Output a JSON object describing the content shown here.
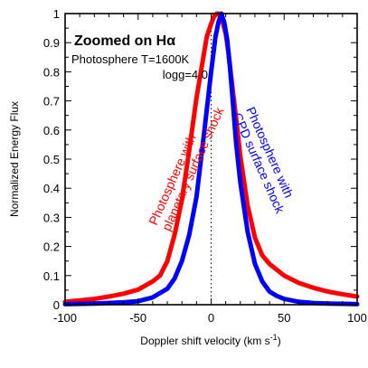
{
  "chart_data": {
    "type": "line",
    "title": "Zoomed on Hα",
    "xlabel_main": "Doppler shift velocity (km s",
    "xlabel_sup": "-1",
    "xlabel_end": ")",
    "ylabel": "Normalized Energy Flux",
    "xlim": [
      -100,
      100
    ],
    "ylim": [
      0,
      1
    ],
    "xticks": [
      -100,
      -50,
      0,
      50,
      100
    ],
    "yticks": [
      0,
      0.1,
      0.2,
      0.3,
      0.4,
      0.5,
      0.6,
      0.7,
      0.8,
      0.9,
      1
    ],
    "xtick_labels": [
      "-100",
      "-50",
      "0",
      "50",
      "100"
    ],
    "ytick_labels": [
      "0",
      "0.1",
      "0.2",
      "0.3",
      "0.4",
      "0.5",
      "0.6",
      "0.7",
      "0.8",
      "0.9",
      "1"
    ],
    "annotation_lines": [
      "Photosphere T=1600K",
      "logg=4.0"
    ],
    "series": [
      {
        "name": "Photosphere with planetary surface shock",
        "label_lines": [
          "Photosphere with",
          "planetary surface shock"
        ],
        "color": "#ff0000",
        "x": [
          -100,
          -90,
          -80,
          -70,
          -60,
          -50,
          -40,
          -35,
          -30,
          -25,
          -20,
          -15,
          -10,
          -7,
          -5,
          -3,
          0,
          2,
          4,
          5,
          7,
          8,
          10,
          12,
          15,
          18,
          20,
          25,
          30,
          35,
          40,
          50,
          60,
          70,
          80,
          90,
          100
        ],
        "y": [
          0.01,
          0.015,
          0.02,
          0.028,
          0.038,
          0.052,
          0.08,
          0.1,
          0.15,
          0.24,
          0.36,
          0.53,
          0.71,
          0.8,
          0.86,
          0.92,
          0.965,
          0.99,
          1.0,
          1.0,
          0.985,
          0.97,
          0.93,
          0.86,
          0.73,
          0.6,
          0.51,
          0.34,
          0.23,
          0.17,
          0.14,
          0.1,
          0.075,
          0.058,
          0.045,
          0.036,
          0.028
        ]
      },
      {
        "name": "Photosphere with CPD surface shock",
        "label_lines": [
          "Photosphere with",
          "CPD surface shock"
        ],
        "color": "#0000ff",
        "x": [
          -100,
          -80,
          -60,
          -50,
          -40,
          -30,
          -25,
          -20,
          -15,
          -10,
          -5,
          0,
          3,
          5,
          7,
          9,
          11,
          13,
          15,
          17,
          20,
          25,
          30,
          35,
          40,
          45,
          50,
          60,
          70,
          80,
          90,
          100
        ],
        "y": [
          0.002,
          0.004,
          0.008,
          0.012,
          0.025,
          0.055,
          0.09,
          0.15,
          0.24,
          0.37,
          0.58,
          0.8,
          0.92,
          0.97,
          1.0,
          0.97,
          0.91,
          0.81,
          0.69,
          0.56,
          0.42,
          0.25,
          0.14,
          0.08,
          0.045,
          0.03,
          0.02,
          0.01,
          0.006,
          0.004,
          0.003,
          0.002
        ]
      }
    ]
  }
}
